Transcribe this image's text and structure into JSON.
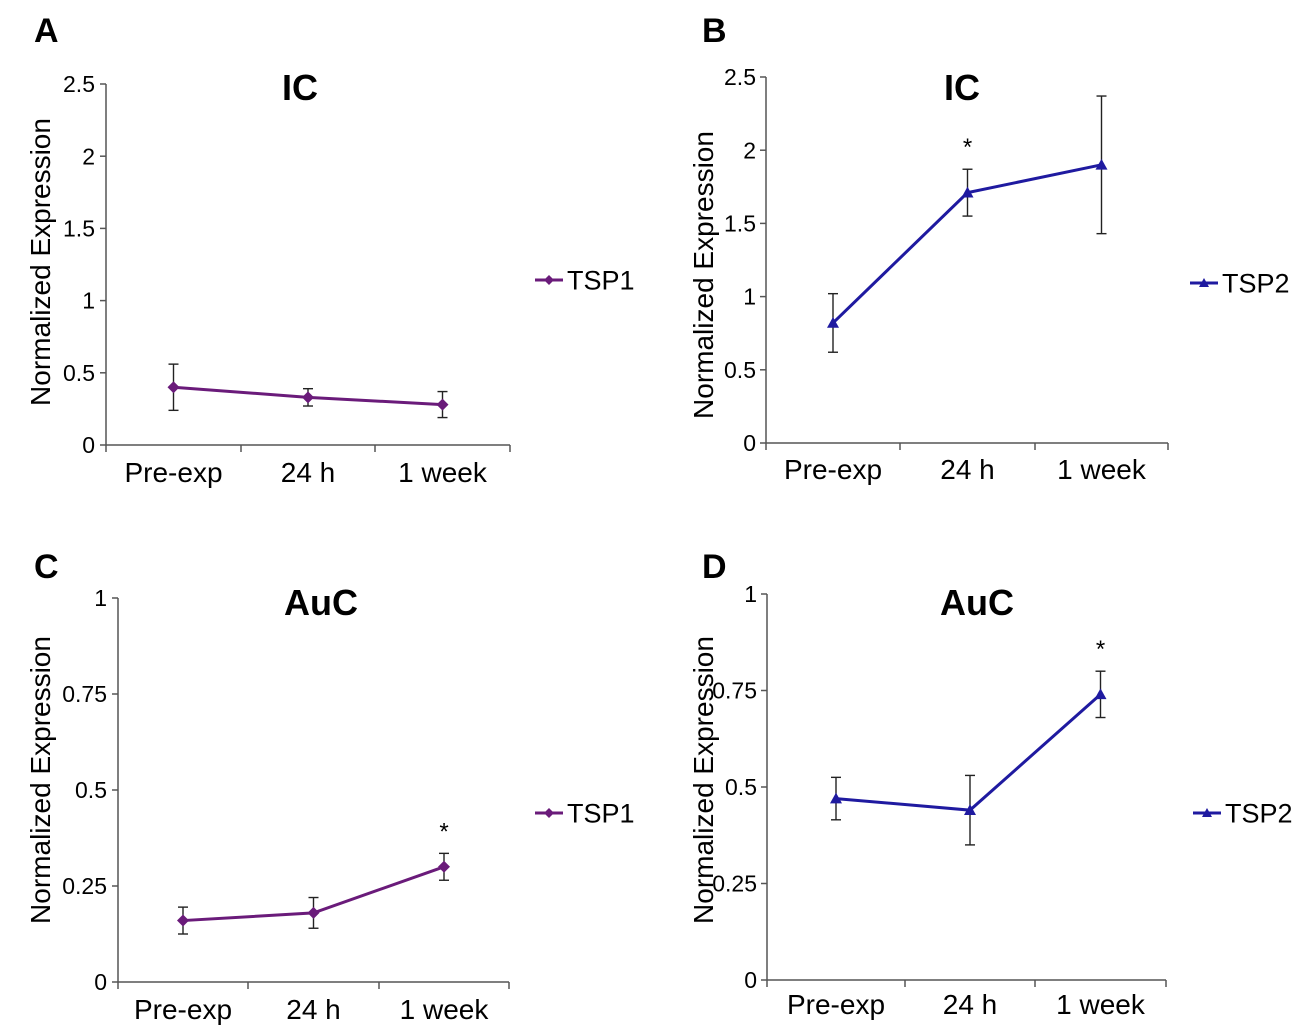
{
  "chart_data": [
    {
      "panel": "A",
      "type": "line",
      "title": "IC",
      "ylabel": "Normalized Expression",
      "xlabel": "",
      "categories": [
        "Pre-exp",
        "24 h",
        "1 week"
      ],
      "yticks": [
        "0",
        "0.5",
        "1",
        "1.5",
        "2",
        "2.5"
      ],
      "ylim": [
        0,
        2.5
      ],
      "series": [
        {
          "name": "TSP1",
          "color": "#6a1b7a",
          "marker": "diamond",
          "values": [
            0.4,
            0.33,
            0.28
          ],
          "errors": [
            0.16,
            0.06,
            0.09
          ]
        }
      ],
      "annotations": [],
      "legend_position": "right"
    },
    {
      "panel": "B",
      "type": "line",
      "title": "IC",
      "ylabel": "Normalized Expression",
      "xlabel": "",
      "categories": [
        "Pre-exp",
        "24 h",
        "1 week"
      ],
      "yticks": [
        "0",
        "0.5",
        "1",
        "1.5",
        "2",
        "2.5"
      ],
      "ylim": [
        0,
        2.5
      ],
      "series": [
        {
          "name": "TSP2",
          "color": "#1f1aa0",
          "marker": "triangle",
          "values": [
            0.82,
            1.71,
            1.9
          ],
          "errors": [
            0.2,
            0.16,
            0.47
          ]
        }
      ],
      "annotations": [
        {
          "category_index": 1,
          "text": "*"
        }
      ],
      "legend_position": "right"
    },
    {
      "panel": "C",
      "type": "line",
      "title": "AuC",
      "ylabel": "Normalized Expression",
      "xlabel": "",
      "categories": [
        "Pre-exp",
        "24 h",
        "1 week"
      ],
      "yticks": [
        "0",
        "0.25",
        "0.5",
        "0.75",
        "1"
      ],
      "ylim": [
        0,
        1
      ],
      "series": [
        {
          "name": "TSP1",
          "color": "#6a1b7a",
          "marker": "diamond",
          "values": [
            0.16,
            0.18,
            0.3
          ],
          "errors": [
            0.035,
            0.04,
            0.035
          ]
        }
      ],
      "annotations": [
        {
          "category_index": 2,
          "text": "*"
        }
      ],
      "legend_position": "right"
    },
    {
      "panel": "D",
      "type": "line",
      "title": "AuC",
      "ylabel": "Normalized Expression",
      "xlabel": "",
      "categories": [
        "Pre-exp",
        "24 h",
        "1 week"
      ],
      "yticks": [
        "0",
        "0.25",
        "0.5",
        "0.75",
        "1"
      ],
      "ylim": [
        0,
        1
      ],
      "series": [
        {
          "name": "TSP2",
          "color": "#1f1aa0",
          "marker": "triangle",
          "values": [
            0.47,
            0.44,
            0.74
          ],
          "errors": [
            0.055,
            0.09,
            0.06
          ]
        }
      ],
      "annotations": [
        {
          "category_index": 2,
          "text": "*"
        }
      ],
      "legend_position": "right"
    }
  ]
}
